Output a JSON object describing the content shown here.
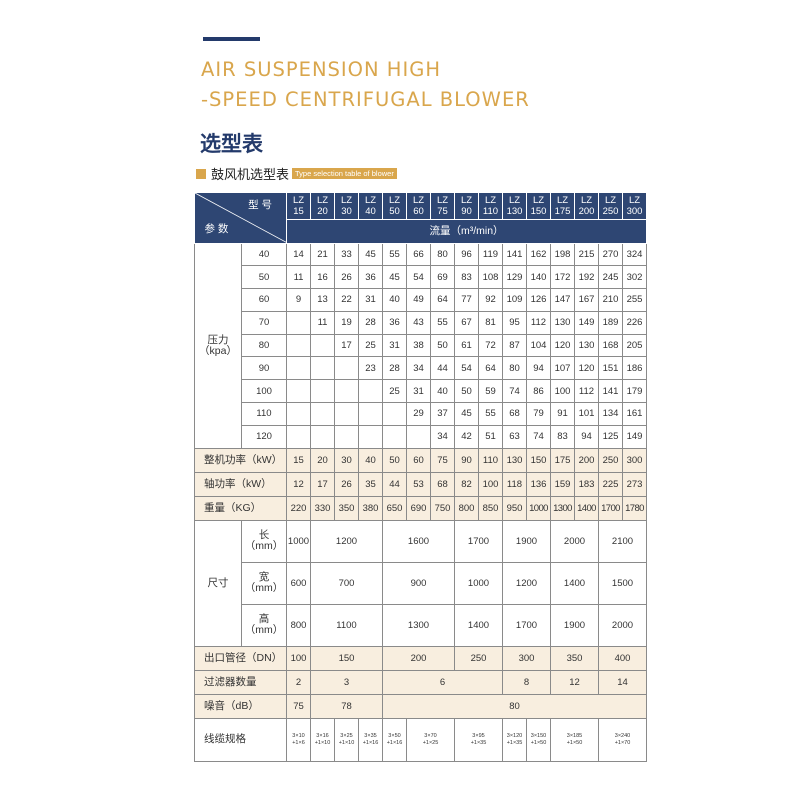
{
  "title": "AIR SUSPENSION HIGH\n-SPEED CENTRIFUGAL BLOWER",
  "subtitle": "选型表",
  "section": {
    "zh": "鼓风机选型表",
    "en": "Type selection table of blower"
  },
  "colors": {
    "navy": "#2e4673",
    "gold": "#d9a64c",
    "beige": "#f8eedf"
  },
  "table": {
    "header": {
      "model_label": "型 号",
      "param_label": "参 数",
      "models": [
        "LZ\n15",
        "LZ\n20",
        "LZ\n30",
        "LZ\n40",
        "LZ\n50",
        "LZ\n60",
        "LZ\n75",
        "LZ\n90",
        "LZ\n110",
        "LZ\n130",
        "LZ\n150",
        "LZ\n175",
        "LZ\n200",
        "LZ\n250",
        "LZ\n300"
      ],
      "flow_label": "流量（m³/min）"
    },
    "pressure": {
      "label": "压力\n（kpa）",
      "rows": [
        {
          "p": "40",
          "values": [
            "14",
            "21",
            "33",
            "45",
            "55",
            "66",
            "80",
            "96",
            "119",
            "141",
            "162",
            "198",
            "215",
            "270",
            "324"
          ]
        },
        {
          "p": "50",
          "values": [
            "11",
            "16",
            "26",
            "36",
            "45",
            "54",
            "69",
            "83",
            "108",
            "129",
            "140",
            "172",
            "192",
            "245",
            "302"
          ]
        },
        {
          "p": "60",
          "values": [
            "9",
            "13",
            "22",
            "31",
            "40",
            "49",
            "64",
            "77",
            "92",
            "109",
            "126",
            "147",
            "167",
            "210",
            "255"
          ]
        },
        {
          "p": "70",
          "values": [
            "",
            "11",
            "19",
            "28",
            "36",
            "43",
            "55",
            "67",
            "81",
            "95",
            "112",
            "130",
            "149",
            "189",
            "226"
          ]
        },
        {
          "p": "80",
          "values": [
            "",
            "",
            "17",
            "25",
            "31",
            "38",
            "50",
            "61",
            "72",
            "87",
            "104",
            "120",
            "130",
            "168",
            "205"
          ]
        },
        {
          "p": "90",
          "values": [
            "",
            "",
            "",
            "23",
            "28",
            "34",
            "44",
            "54",
            "64",
            "80",
            "94",
            "107",
            "120",
            "151",
            "186"
          ]
        },
        {
          "p": "100",
          "values": [
            "",
            "",
            "",
            "",
            "25",
            "31",
            "40",
            "50",
            "59",
            "74",
            "86",
            "100",
            "112",
            "141",
            "179"
          ]
        },
        {
          "p": "110",
          "values": [
            "",
            "",
            "",
            "",
            "",
            "29",
            "37",
            "45",
            "55",
            "68",
            "79",
            "91",
            "101",
            "134",
            "161"
          ]
        },
        {
          "p": "120",
          "values": [
            "",
            "",
            "",
            "",
            "",
            "",
            "34",
            "42",
            "51",
            "63",
            "74",
            "83",
            "94",
            "125",
            "149"
          ]
        }
      ]
    },
    "specs": [
      {
        "label": "整机功率（kW）",
        "values": [
          "15",
          "20",
          "30",
          "40",
          "50",
          "60",
          "75",
          "90",
          "110",
          "130",
          "150",
          "175",
          "200",
          "250",
          "300"
        ]
      },
      {
        "label": "轴功率（kW）",
        "values": [
          "12",
          "17",
          "26",
          "35",
          "44",
          "53",
          "68",
          "82",
          "100",
          "118",
          "136",
          "159",
          "183",
          "225",
          "273"
        ]
      },
      {
        "label": "重量（KG）",
        "values": [
          "220",
          "330",
          "350",
          "380",
          "650",
          "690",
          "750",
          "800",
          "850",
          "950",
          "1000",
          "1300",
          "1400",
          "1700",
          "1780"
        ]
      }
    ],
    "dimensions": {
      "label": "尺寸",
      "rows": [
        {
          "label": "长\n（mm）",
          "cells": [
            {
              "v": "1000",
              "span": 1
            },
            {
              "v": "1200",
              "span": 3
            },
            {
              "v": "1600",
              "span": 3
            },
            {
              "v": "1700",
              "span": 2
            },
            {
              "v": "1900",
              "span": 2
            },
            {
              "v": "2000",
              "span": 2
            },
            {
              "v": "2100",
              "span": 2
            }
          ]
        },
        {
          "label": "宽\n（mm）",
          "cells": [
            {
              "v": "600",
              "span": 1
            },
            {
              "v": "700",
              "span": 3
            },
            {
              "v": "900",
              "span": 3
            },
            {
              "v": "1000",
              "span": 2
            },
            {
              "v": "1200",
              "span": 2
            },
            {
              "v": "1400",
              "span": 2
            },
            {
              "v": "1500",
              "span": 2
            }
          ]
        },
        {
          "label": "高\n（mm）",
          "cells": [
            {
              "v": "800",
              "span": 1
            },
            {
              "v": "1100",
              "span": 3
            },
            {
              "v": "1300",
              "span": 3
            },
            {
              "v": "1400",
              "span": 2
            },
            {
              "v": "1700",
              "span": 2
            },
            {
              "v": "1900",
              "span": 2
            },
            {
              "v": "2000",
              "span": 2
            }
          ]
        }
      ]
    },
    "merged": [
      {
        "label": "出口管径（DN）",
        "beige": true,
        "cells": [
          {
            "v": "100",
            "span": 1
          },
          {
            "v": "150",
            "span": 3
          },
          {
            "v": "200",
            "span": 3
          },
          {
            "v": "250",
            "span": 2
          },
          {
            "v": "300",
            "span": 2
          },
          {
            "v": "350",
            "span": 2
          },
          {
            "v": "400",
            "span": 2
          }
        ]
      },
      {
        "label": "过滤器数量",
        "beige": true,
        "cells": [
          {
            "v": "2",
            "span": 1
          },
          {
            "v": "3",
            "span": 3
          },
          {
            "v": "6",
            "span": 5
          },
          {
            "v": "8",
            "span": 2
          },
          {
            "v": "12",
            "span": 2
          },
          {
            "v": "14",
            "span": 2
          }
        ]
      },
      {
        "label": "噪音（dB）",
        "beige": true,
        "cells": [
          {
            "v": "75",
            "span": 1
          },
          {
            "v": "78",
            "span": 3
          },
          {
            "v": "80",
            "span": 11
          }
        ]
      },
      {
        "label": "线缆规格",
        "beige": false,
        "cable": true,
        "cells": [
          {
            "v": "3×10\n+1×6",
            "span": 1
          },
          {
            "v": "3×16\n+1×10",
            "span": 1
          },
          {
            "v": "3×25\n+1×10",
            "span": 1
          },
          {
            "v": "3×35\n+1×16",
            "span": 1
          },
          {
            "v": "3×50\n+1×16",
            "span": 1
          },
          {
            "v": "3×70\n+1×25",
            "span": 2
          },
          {
            "v": "3×95\n+1×35",
            "span": 2
          },
          {
            "v": "3×120\n+1×35",
            "span": 1
          },
          {
            "v": "3×150\n+1×50",
            "span": 1
          },
          {
            "v": "3×185\n+1×50",
            "span": 2
          },
          {
            "v": "3×240\n+1×70",
            "span": 2
          }
        ]
      }
    ]
  }
}
